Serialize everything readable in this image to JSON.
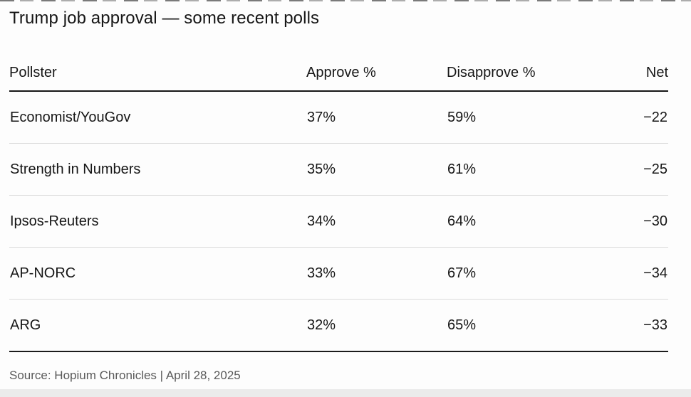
{
  "title": "Trump job approval — some recent polls",
  "table": {
    "columns": [
      {
        "label": "Pollster",
        "align": "left"
      },
      {
        "label": "Approve %",
        "align": "left"
      },
      {
        "label": "Disapprove %",
        "align": "left"
      },
      {
        "label": "Net",
        "align": "right"
      }
    ],
    "rows": [
      {
        "pollster": "Economist/YouGov",
        "approve": "37%",
        "disapprove": "59%",
        "net": "−22"
      },
      {
        "pollster": "Strength in Numbers",
        "approve": "35%",
        "disapprove": "61%",
        "net": "−25"
      },
      {
        "pollster": "Ipsos-Reuters",
        "approve": "34%",
        "disapprove": "64%",
        "net": "−30"
      },
      {
        "pollster": "AP-NORC",
        "approve": "33%",
        "disapprove": "67%",
        "net": "−34"
      },
      {
        "pollster": "ARG",
        "approve": "32%",
        "disapprove": "65%",
        "net": "−33"
      }
    ]
  },
  "source": "Source: Hopium Chronicles | April 28, 2025",
  "colors": {
    "text": "#161616",
    "source_text": "#5a5a5a",
    "divider_light": "#dbdbdb",
    "divider_dark": "#161616",
    "background": "#fdfdfd",
    "bottom_strip": "#ebebeb"
  },
  "chart_data": {
    "type": "table",
    "title": "Trump job approval — some recent polls",
    "columns": [
      "Pollster",
      "Approve %",
      "Disapprove %",
      "Net"
    ],
    "rows": [
      [
        "Economist/YouGov",
        37,
        59,
        -22
      ],
      [
        "Strength in Numbers",
        35,
        61,
        -25
      ],
      [
        "Ipsos-Reuters",
        34,
        64,
        -30
      ],
      [
        "AP-NORC",
        33,
        67,
        -34
      ],
      [
        "ARG",
        32,
        65,
        -33
      ]
    ],
    "source": "Source: Hopium Chronicles | April 28, 2025"
  }
}
